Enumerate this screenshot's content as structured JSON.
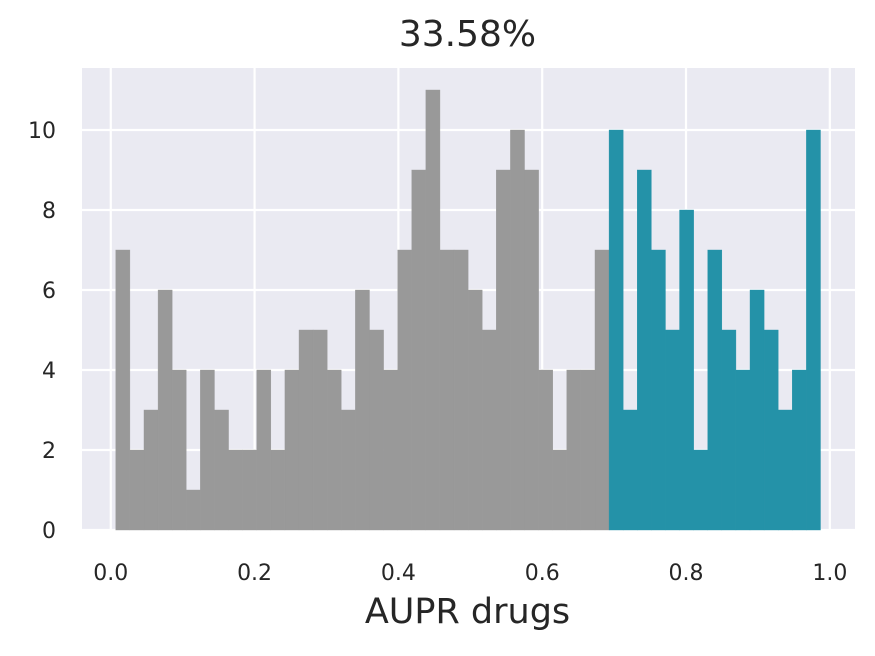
{
  "chart_data": {
    "type": "bar",
    "title": "33.58%",
    "xlabel": "AUPR drugs",
    "ylabel": "",
    "xlim": [
      -0.04,
      1.035
    ],
    "ylim": [
      0,
      11.55
    ],
    "x_ticks": [
      "0.0",
      "0.2",
      "0.4",
      "0.6",
      "0.8",
      "1.0"
    ],
    "x_tick_values": [
      0.0,
      0.2,
      0.4,
      0.6,
      0.8,
      1.0
    ],
    "y_ticks": [
      "0",
      "2",
      "4",
      "6",
      "8",
      "10"
    ],
    "y_tick_values": [
      0,
      2,
      4,
      6,
      8,
      10
    ],
    "grid": true,
    "background_color": "#eaeaf2",
    "grid_color": "#ffffff",
    "bin_start": 0.007,
    "bin_width": 0.0196,
    "threshold": 0.695,
    "colors": {
      "below": "#999999",
      "above": "#2492a8"
    },
    "series": [
      {
        "values": [
          7,
          2,
          3,
          6,
          4,
          1,
          4,
          3,
          2,
          2,
          4,
          2,
          4,
          5,
          5,
          4,
          3,
          6,
          5,
          4,
          7,
          9,
          11,
          7,
          7,
          6,
          5,
          9,
          10,
          9,
          4,
          2,
          4,
          4,
          7,
          10,
          3,
          9,
          7,
          5,
          8,
          2,
          7,
          5,
          4,
          6,
          5,
          3,
          4,
          10
        ]
      }
    ]
  }
}
